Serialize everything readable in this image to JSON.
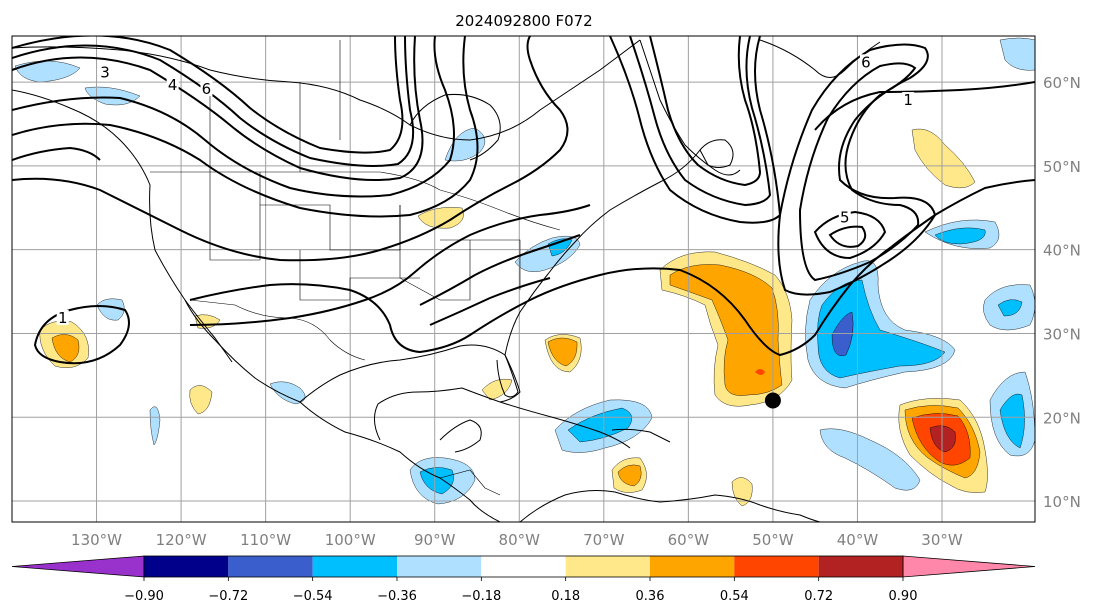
{
  "title": "2024092800 F072",
  "map": {
    "lon_range": [
      -140,
      -19
    ],
    "lat_range": [
      7.5,
      65.5
    ],
    "lon_ticks": [
      -130,
      -120,
      -110,
      -100,
      -90,
      -80,
      -70,
      -60,
      -50,
      -40,
      -30
    ],
    "lat_ticks": [
      10,
      20,
      30,
      40,
      50,
      60
    ],
    "lon_tick_labels": [
      "130°W",
      "120°W",
      "110°W",
      "100°W",
      "90°W",
      "80°W",
      "70°W",
      "60°W",
      "50°W",
      "40°W",
      "30°W"
    ],
    "lat_tick_labels": [
      "10°N",
      "20°N",
      "30°N",
      "40°N",
      "50°N",
      "60°N"
    ],
    "gridlines": true,
    "storm_marker": {
      "lon": -50,
      "lat": 22
    }
  },
  "contour_labels": [
    {
      "text": "1",
      "lon": -34,
      "lat": 57.5
    },
    {
      "text": "1",
      "lon": -134,
      "lat": 31.5
    },
    {
      "text": "5",
      "lon": -41.5,
      "lat": 43.5
    },
    {
      "text": "3",
      "lon": -129,
      "lat": 60.8
    },
    {
      "text": "4",
      "lon": -121,
      "lat": 59.3
    },
    {
      "text": "6",
      "lon": -117,
      "lat": 58.8
    },
    {
      "text": "6",
      "lon": -39,
      "lat": 62
    }
  ],
  "colorbar": {
    "levels": [
      "−0.90",
      "−0.72",
      "−0.54",
      "−0.36",
      "−0.18",
      "0.18",
      "0.36",
      "0.54",
      "0.72",
      "0.90"
    ],
    "colors": [
      "#9932cc",
      "#00008b",
      "#3a5fcd",
      "#00bfff",
      "#b0e0ff",
      "#ffffff",
      "#ffe88a",
      "#ffa500",
      "#ff4500",
      "#b22222",
      "#ff88aa"
    ]
  }
}
